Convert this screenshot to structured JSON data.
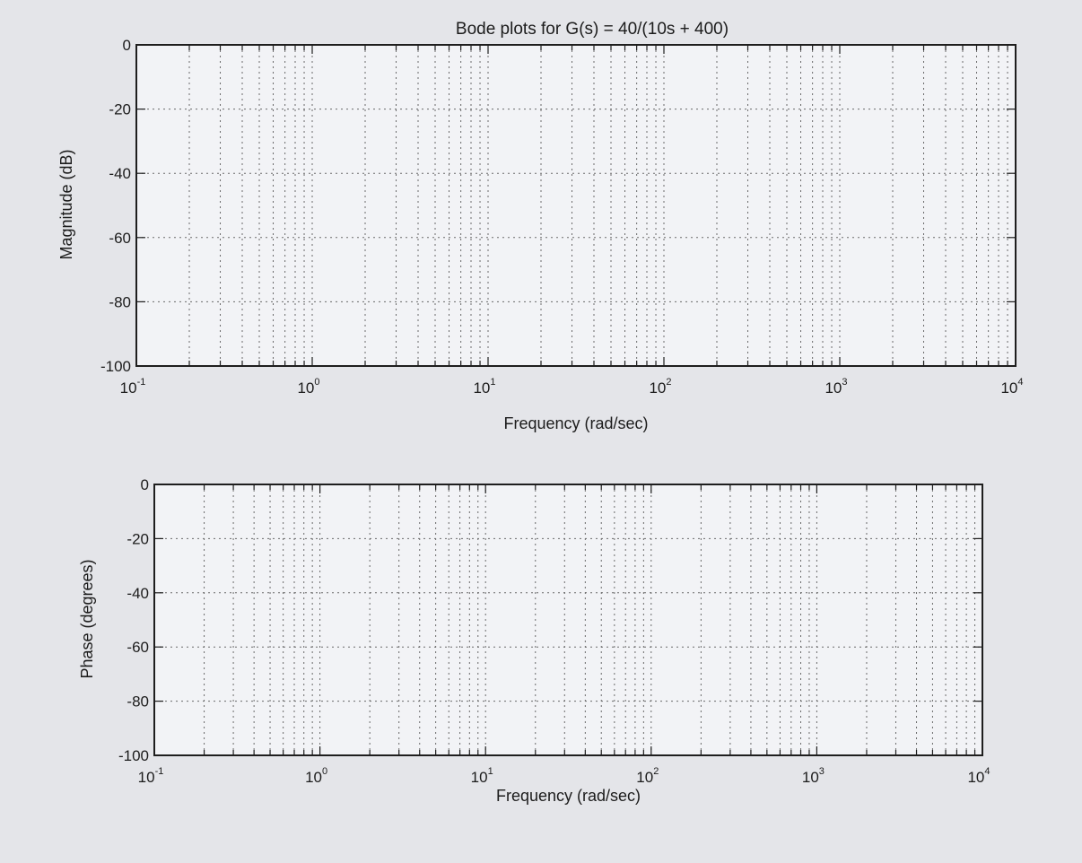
{
  "chart_data": [
    {
      "type": "line",
      "title": "Bode plots for G(s) = 40/(10s + 400)",
      "xlabel": "Frequency (rad/sec)",
      "ylabel": "Magnitude (dB)",
      "xscale": "log",
      "xlim": [
        0.1,
        10000
      ],
      "ylim": [
        -100,
        0
      ],
      "x_ticks": [
        {
          "base": "10",
          "exp": "-1"
        },
        {
          "base": "10",
          "exp": "0"
        },
        {
          "base": "10",
          "exp": "1"
        },
        {
          "base": "10",
          "exp": "2"
        },
        {
          "base": "10",
          "exp": "3"
        },
        {
          "base": "10",
          "exp": "4"
        }
      ],
      "y_ticks": [
        "0",
        "-20",
        "-40",
        "-60",
        "-80",
        "-100"
      ],
      "grid": true,
      "series": []
    },
    {
      "type": "line",
      "title": "",
      "xlabel": "Frequency (rad/sec)",
      "ylabel": "Phase (degrees)",
      "xscale": "log",
      "xlim": [
        0.1,
        10000
      ],
      "ylim": [
        -100,
        0
      ],
      "x_ticks": [
        {
          "base": "10",
          "exp": "-1"
        },
        {
          "base": "10",
          "exp": "0"
        },
        {
          "base": "10",
          "exp": "1"
        },
        {
          "base": "10",
          "exp": "2"
        },
        {
          "base": "10",
          "exp": "3"
        },
        {
          "base": "10",
          "exp": "4"
        }
      ],
      "y_ticks": [
        "0",
        "-20",
        "-40",
        "-60",
        "-80",
        "-100"
      ],
      "grid": true,
      "series": []
    }
  ],
  "colors": {
    "background": "#e4e5e9",
    "plot_area": "#f2f3f6",
    "axis": "#1e1e1e",
    "grid": "#6a6a6a"
  }
}
